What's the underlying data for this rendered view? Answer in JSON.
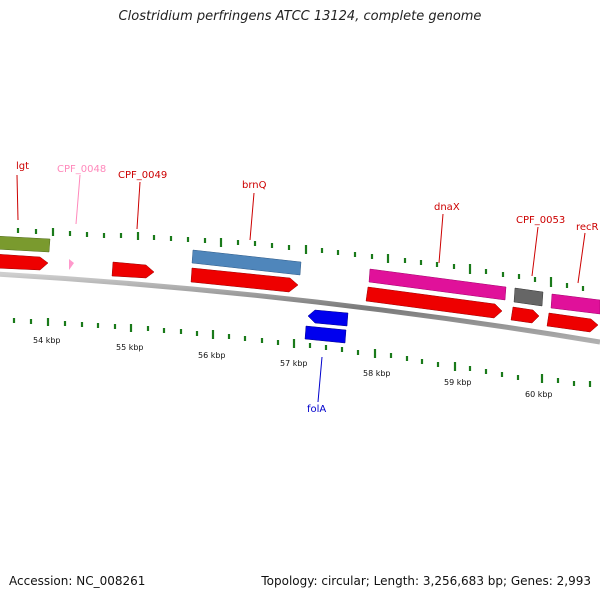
{
  "title": "Clostridium perfringens ATCC 13124, complete genome",
  "accession": "Accession: NC_008261",
  "summary": "Topology: circular; Length: 3,256,683 bp; Genes: 2,993",
  "ruler": {
    "labels": [
      "54 kbp",
      "55 kbp",
      "56 kbp",
      "57 kbp",
      "58 kbp",
      "59 kbp",
      "60 kbp"
    ]
  },
  "genes": [
    {
      "label": "lgt",
      "color": "#cc0000",
      "strand": "+"
    },
    {
      "label": "CPF_0048",
      "color": "#ff88bb",
      "strand": "+"
    },
    {
      "label": "CPF_0049",
      "color": "#cc0000",
      "strand": "+"
    },
    {
      "label": "brnQ",
      "color": "#cc0000",
      "strand": "+"
    },
    {
      "label": "dnaX",
      "color": "#cc0000",
      "strand": "+"
    },
    {
      "label": "CPF_0053",
      "color": "#cc0000",
      "strand": "+"
    },
    {
      "label": "recR",
      "color": "#cc0000",
      "strand": "+"
    },
    {
      "label": "folA",
      "color": "#0000cc",
      "strand": "-"
    }
  ],
  "colors": {
    "cds": "#ee0000",
    "green_feature": "#7a9a2e",
    "steel_blue_feature": "#4f86bb",
    "magenta_feature": "#e0119a",
    "gray_feature": "#666666",
    "pink_feature": "#ff99cc",
    "blue_feature": "#0000ee",
    "tick": "#1a7a1a",
    "backbone": "#888888"
  }
}
